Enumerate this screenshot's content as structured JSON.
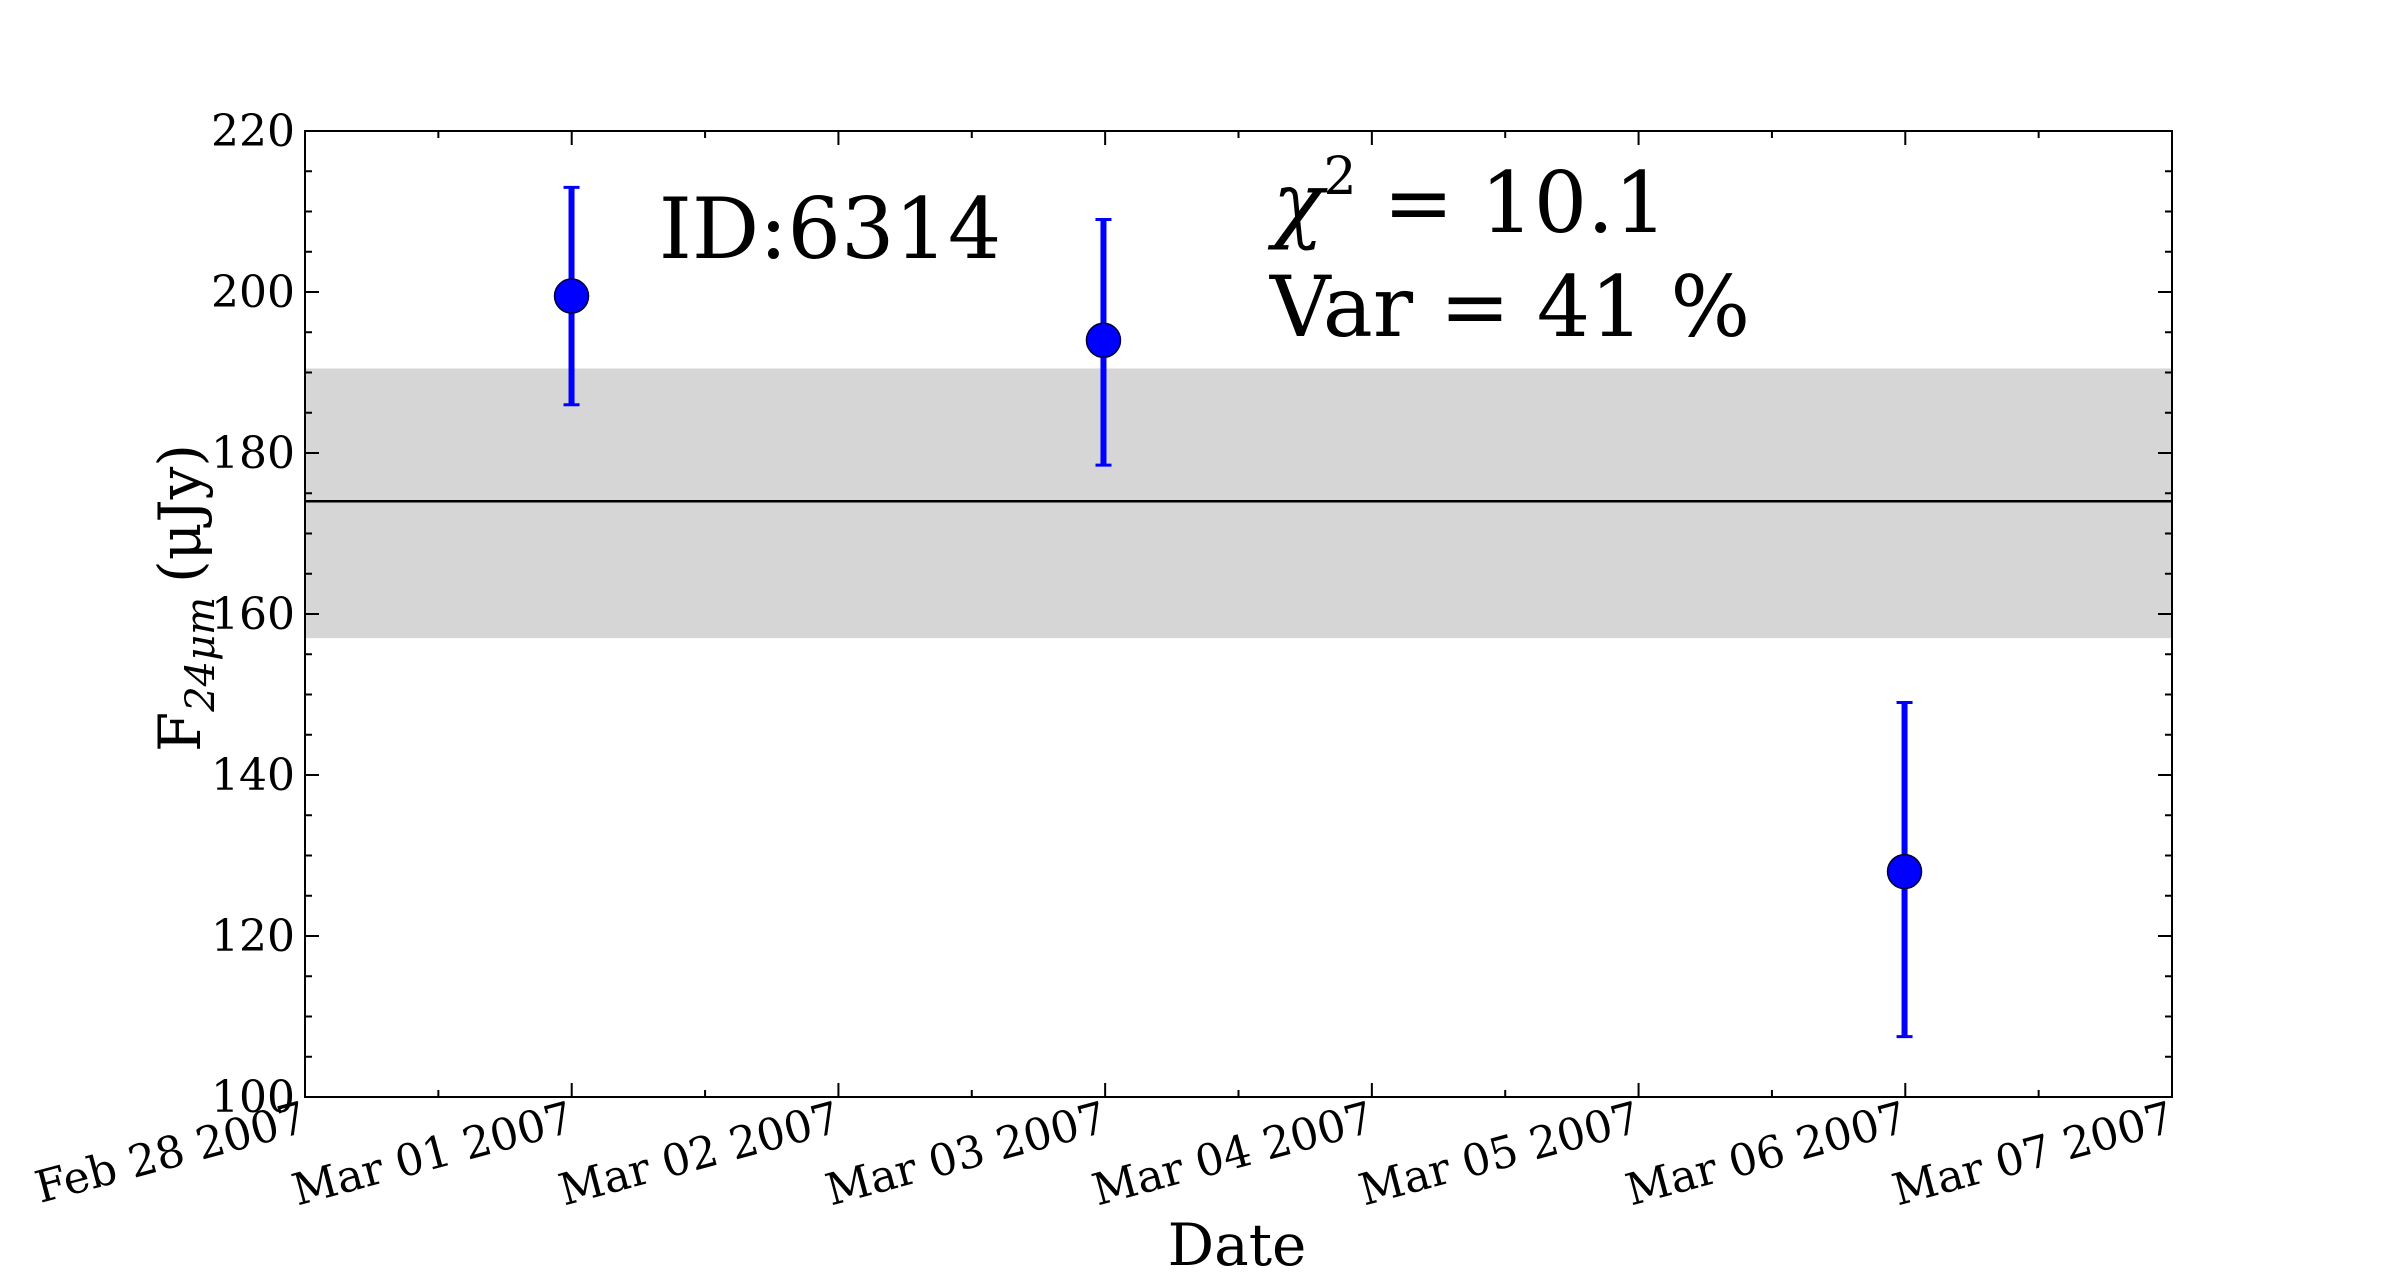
{
  "chart_data": {
    "type": "scatter",
    "xlabel": "Date",
    "ylabel": "F",
    "ylabel_sub": "24μm",
    "ylabel_unit": "(μJy)",
    "x_ticks": [
      "Feb 28 2007",
      "Mar 01 2007",
      "Mar 02 2007",
      "Mar 03 2007",
      "Mar 04 2007",
      "Mar 05 2007",
      "Mar 06 2007",
      "Mar 07 2007"
    ],
    "y_ticks": [
      100,
      120,
      140,
      160,
      180,
      200,
      220
    ],
    "xlim": [
      "2007-02-28",
      "2007-03-07"
    ],
    "ylim": [
      100,
      220
    ],
    "grid": false,
    "points": [
      {
        "date": "2007-02-28 23:59",
        "y": 199.5,
        "err_low": 186,
        "err_high": 213
      },
      {
        "date": "2007-03-02 23:51",
        "y": 194,
        "err_low": 178.5,
        "err_high": 209
      },
      {
        "date": "2007-03-05 23:56",
        "y": 128,
        "err_low": 107.5,
        "err_high": 149
      }
    ],
    "mean": 174,
    "band": [
      157,
      190.5
    ],
    "point_color": "#0000ff",
    "band_color": "#d6d6d6",
    "annotations": {
      "id": "ID:6314",
      "chi2_symbol": "χ",
      "chi2_exp": "2",
      "chi2_value": " = 10.1",
      "var": "Var = 41 %"
    }
  }
}
